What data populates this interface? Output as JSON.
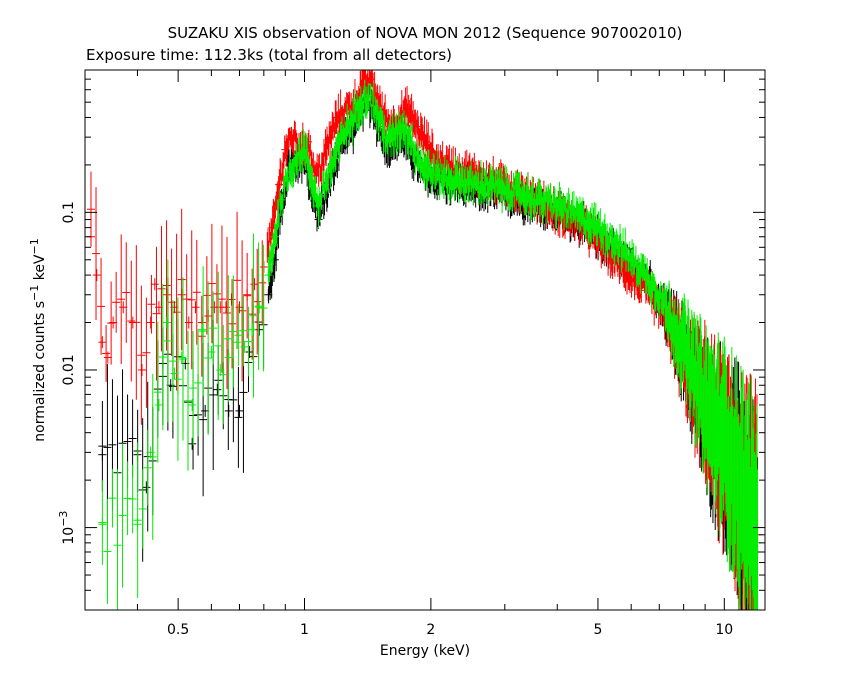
{
  "title": "SUZAKU XIS observation of NOVA MON 2012 (Sequence 907002010)",
  "subtitle": "Exposure time: 112.3ks (total from all detectors)",
  "chart_data": {
    "type": "scatter",
    "title": "SUZAKU XIS observation of NOVA MON 2012 (Sequence 907002010)",
    "subtitle": "Exposure time: 112.3ks (total from all detectors)",
    "xlabel": "Energy (keV)",
    "ylabel": "normalized counts s^-1 keV^-1",
    "ylabel_parts": [
      "normalized counts s",
      "−1",
      " keV",
      "−1"
    ],
    "xscale": "log",
    "yscale": "log",
    "xlim": [
      0.3,
      12.5
    ],
    "ylim": [
      0.0003,
      0.8
    ],
    "grid": false,
    "x_ticks": [
      {
        "value": 0.5,
        "label": "0.5"
      },
      {
        "value": 1,
        "label": "1"
      },
      {
        "value": 2,
        "label": "2"
      },
      {
        "value": 5,
        "label": "5"
      },
      {
        "value": 10,
        "label": "10"
      }
    ],
    "y_ticks": [
      {
        "value": 0.001,
        "label": "10",
        "sup": "−3"
      },
      {
        "value": 0.01,
        "label": "0.01"
      },
      {
        "value": 0.1,
        "label": "0.1"
      }
    ],
    "series_colors": {
      "xis0": "#000000",
      "xis1": "#ff0000",
      "xis3": "#00ee00"
    },
    "series": [
      {
        "color": "#000000",
        "points": [
          [
            0.33,
            0.0029
          ],
          [
            0.4,
            0.0029
          ],
          [
            0.42,
            0.0018
          ],
          [
            0.46,
            0.011
          ],
          [
            0.48,
            0.008
          ],
          [
            0.52,
            0.011
          ],
          [
            0.54,
            0.0034
          ],
          [
            0.58,
            0.0055
          ],
          [
            0.62,
            0.0075
          ],
          [
            0.66,
            0.0055
          ],
          [
            0.7,
            0.0055
          ],
          [
            0.74,
            0.013
          ],
          [
            0.78,
            0.018
          ],
          [
            0.82,
            0.03
          ],
          [
            0.85,
            0.05
          ],
          [
            0.88,
            0.11
          ],
          [
            0.92,
            0.2
          ],
          [
            0.96,
            0.2
          ],
          [
            1.0,
            0.22
          ],
          [
            1.04,
            0.14
          ],
          [
            1.08,
            0.09
          ],
          [
            1.12,
            0.13
          ],
          [
            1.18,
            0.2
          ],
          [
            1.24,
            0.3
          ],
          [
            1.3,
            0.33
          ],
          [
            1.36,
            0.45
          ],
          [
            1.42,
            0.5
          ],
          [
            1.5,
            0.35
          ],
          [
            1.58,
            0.25
          ],
          [
            1.65,
            0.28
          ],
          [
            1.72,
            0.3
          ],
          [
            1.8,
            0.23
          ],
          [
            1.9,
            0.18
          ],
          [
            2.0,
            0.16
          ],
          [
            2.1,
            0.17
          ],
          [
            2.2,
            0.15
          ],
          [
            2.3,
            0.15
          ],
          [
            2.5,
            0.14
          ],
          [
            2.7,
            0.135
          ],
          [
            3.0,
            0.13
          ],
          [
            3.3,
            0.12
          ],
          [
            3.6,
            0.11
          ],
          [
            4.0,
            0.1
          ],
          [
            4.5,
            0.085
          ],
          [
            5.0,
            0.07
          ],
          [
            5.5,
            0.055
          ],
          [
            6.0,
            0.045
          ],
          [
            6.5,
            0.04
          ],
          [
            7.0,
            0.025
          ],
          [
            7.5,
            0.02
          ],
          [
            8.0,
            0.012
          ],
          [
            8.5,
            0.008
          ],
          [
            9.0,
            0.005
          ],
          [
            9.5,
            0.004
          ],
          [
            10.0,
            0.003
          ],
          [
            10.5,
            0.0022
          ],
          [
            11.0,
            0.0015
          ],
          [
            11.5,
            0.001
          ],
          [
            12.0,
            0.0007
          ]
        ]
      },
      {
        "color": "#ff0000",
        "points": [
          [
            0.31,
            0.07
          ],
          [
            0.32,
            0.04
          ],
          [
            0.33,
            0.015
          ],
          [
            0.34,
            0.012
          ],
          [
            0.35,
            0.02
          ],
          [
            0.37,
            0.025
          ],
          [
            0.39,
            0.02
          ],
          [
            0.41,
            0.01
          ],
          [
            0.43,
            0.02
          ],
          [
            0.44,
            0.035
          ],
          [
            0.45,
            0.025
          ],
          [
            0.47,
            0.03
          ],
          [
            0.49,
            0.025
          ],
          [
            0.51,
            0.03
          ],
          [
            0.53,
            0.02
          ],
          [
            0.55,
            0.025
          ],
          [
            0.57,
            0.02
          ],
          [
            0.59,
            0.022
          ],
          [
            0.61,
            0.025
          ],
          [
            0.63,
            0.025
          ],
          [
            0.65,
            0.025
          ],
          [
            0.67,
            0.028
          ],
          [
            0.7,
            0.025
          ],
          [
            0.73,
            0.03
          ],
          [
            0.76,
            0.035
          ],
          [
            0.8,
            0.045
          ],
          [
            0.84,
            0.08
          ],
          [
            0.87,
            0.15
          ],
          [
            0.9,
            0.25
          ],
          [
            0.94,
            0.3
          ],
          [
            0.98,
            0.25
          ],
          [
            1.02,
            0.28
          ],
          [
            1.06,
            0.17
          ],
          [
            1.1,
            0.2
          ],
          [
            1.15,
            0.3
          ],
          [
            1.2,
            0.4
          ],
          [
            1.26,
            0.45
          ],
          [
            1.32,
            0.5
          ],
          [
            1.38,
            0.65
          ],
          [
            1.44,
            0.7
          ],
          [
            1.52,
            0.45
          ],
          [
            1.6,
            0.35
          ],
          [
            1.68,
            0.4
          ],
          [
            1.76,
            0.45
          ],
          [
            1.85,
            0.35
          ],
          [
            1.95,
            0.28
          ],
          [
            2.05,
            0.22
          ],
          [
            2.2,
            0.2
          ],
          [
            2.4,
            0.18
          ],
          [
            2.6,
            0.17
          ],
          [
            2.8,
            0.16
          ],
          [
            3.0,
            0.15
          ],
          [
            3.3,
            0.13
          ],
          [
            3.6,
            0.12
          ],
          [
            4.0,
            0.1
          ],
          [
            4.5,
            0.085
          ],
          [
            5.0,
            0.065
          ],
          [
            5.5,
            0.05
          ],
          [
            6.0,
            0.04
          ],
          [
            6.5,
            0.032
          ],
          [
            7.0,
            0.025
          ],
          [
            7.5,
            0.018
          ],
          [
            8.0,
            0.012
          ],
          [
            8.5,
            0.008
          ],
          [
            9.0,
            0.006
          ],
          [
            9.5,
            0.004
          ],
          [
            10.0,
            0.003
          ],
          [
            10.5,
            0.0022
          ],
          [
            11.0,
            0.0016
          ],
          [
            11.5,
            0.0012
          ],
          [
            12.0,
            0.0009
          ]
        ]
      },
      {
        "color": "#00ee00",
        "points": [
          [
            0.33,
            0.00105
          ],
          [
            0.4,
            0.00105
          ],
          [
            0.43,
            0.003
          ],
          [
            0.45,
            0.006
          ],
          [
            0.47,
            0.02
          ],
          [
            0.49,
            0.0095
          ],
          [
            0.51,
            0.012
          ],
          [
            0.54,
            0.006
          ],
          [
            0.57,
            0.018
          ],
          [
            0.6,
            0.013
          ],
          [
            0.63,
            0.01
          ],
          [
            0.66,
            0.012
          ],
          [
            0.69,
            0.015
          ],
          [
            0.72,
            0.014
          ],
          [
            0.75,
            0.018
          ],
          [
            0.78,
            0.025
          ],
          [
            0.82,
            0.04
          ],
          [
            0.85,
            0.07
          ],
          [
            0.88,
            0.12
          ],
          [
            0.92,
            0.18
          ],
          [
            0.96,
            0.22
          ],
          [
            1.0,
            0.25
          ],
          [
            1.04,
            0.16
          ],
          [
            1.08,
            0.11
          ],
          [
            1.12,
            0.15
          ],
          [
            1.18,
            0.22
          ],
          [
            1.24,
            0.32
          ],
          [
            1.3,
            0.38
          ],
          [
            1.36,
            0.5
          ],
          [
            1.42,
            0.55
          ],
          [
            1.5,
            0.4
          ],
          [
            1.58,
            0.28
          ],
          [
            1.65,
            0.32
          ],
          [
            1.72,
            0.35
          ],
          [
            1.8,
            0.28
          ],
          [
            1.9,
            0.2
          ],
          [
            2.0,
            0.18
          ],
          [
            2.1,
            0.17
          ],
          [
            2.2,
            0.16
          ],
          [
            2.35,
            0.16
          ],
          [
            2.5,
            0.15
          ],
          [
            2.7,
            0.15
          ],
          [
            3.0,
            0.14
          ],
          [
            3.3,
            0.13
          ],
          [
            3.6,
            0.12
          ],
          [
            4.0,
            0.11
          ],
          [
            4.5,
            0.095
          ],
          [
            5.0,
            0.08
          ],
          [
            5.5,
            0.065
          ],
          [
            6.0,
            0.05
          ],
          [
            6.5,
            0.04
          ],
          [
            7.0,
            0.03
          ],
          [
            7.5,
            0.02
          ],
          [
            8.0,
            0.014
          ],
          [
            8.5,
            0.009
          ],
          [
            9.0,
            0.006
          ],
          [
            9.5,
            0.0045
          ],
          [
            10.0,
            0.0035
          ],
          [
            10.5,
            0.0025
          ],
          [
            11.0,
            0.0017
          ],
          [
            11.5,
            0.0012
          ],
          [
            12.0,
            0.0008
          ]
        ]
      }
    ]
  }
}
